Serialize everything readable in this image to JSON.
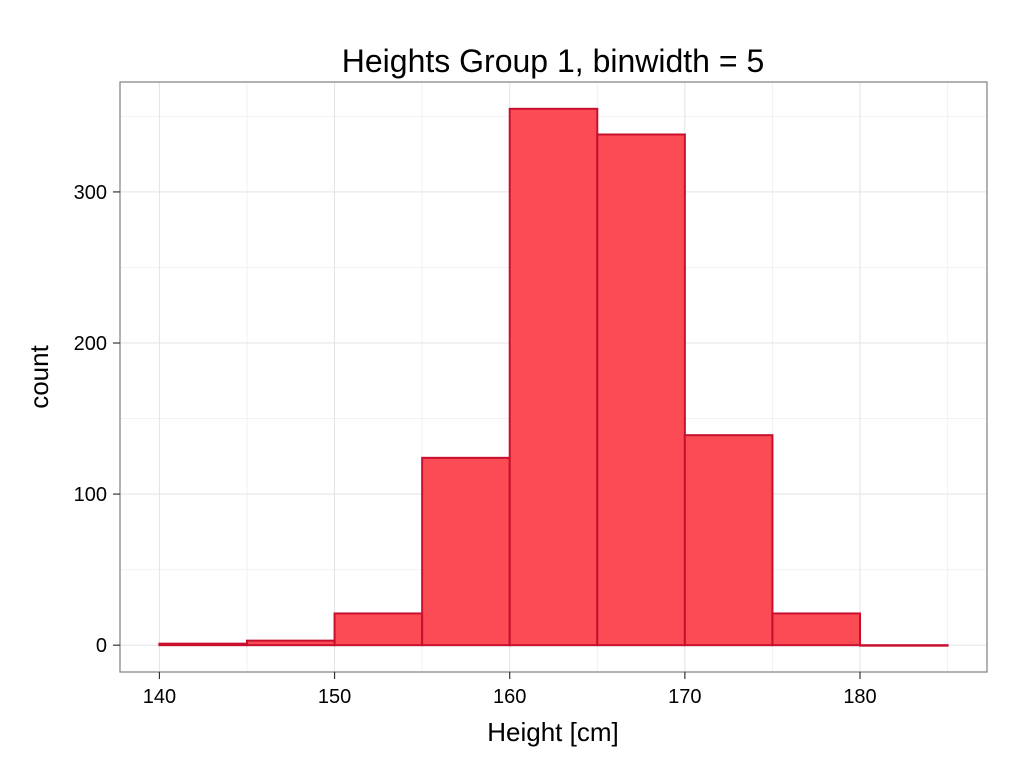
{
  "chart_data": {
    "type": "bar",
    "title": "Heights Group 1, binwidth = 5",
    "xlabel": "Height [cm]",
    "ylabel": "count",
    "bins": [
      {
        "start": 140,
        "end": 145,
        "count": 1
      },
      {
        "start": 145,
        "end": 150,
        "count": 3
      },
      {
        "start": 150,
        "end": 155,
        "count": 21
      },
      {
        "start": 155,
        "end": 160,
        "count": 124
      },
      {
        "start": 160,
        "end": 165,
        "count": 355
      },
      {
        "start": 165,
        "end": 170,
        "count": 338
      },
      {
        "start": 170,
        "end": 175,
        "count": 139
      },
      {
        "start": 175,
        "end": 180,
        "count": 21
      },
      {
        "start": 180,
        "end": 185,
        "count": 0
      }
    ],
    "xlim": [
      137.75,
      187.25
    ],
    "ylim": [
      -17.75,
      372.75
    ],
    "x_ticks": [
      140,
      150,
      160,
      170,
      180
    ],
    "y_ticks": [
      0,
      100,
      200,
      300
    ],
    "grid": true,
    "fill_color": "#fb4b55",
    "stroke_color": "#c8102e"
  }
}
